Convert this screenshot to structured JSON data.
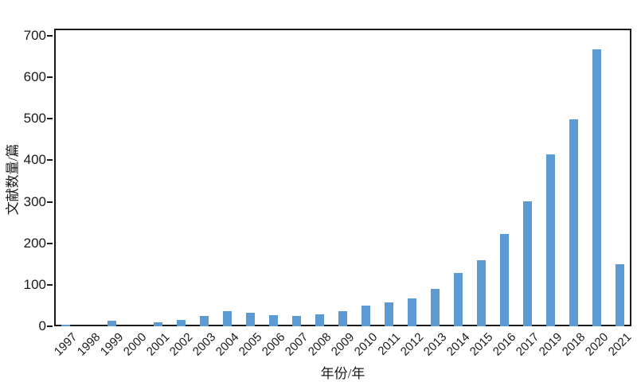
{
  "figure": {
    "background": "#ffffff"
  },
  "chart_data": {
    "type": "bar",
    "title": "",
    "xlabel": "年份/年",
    "ylabel": "文献数量/篇",
    "categories": [
      "1997",
      "1998",
      "1999",
      "2000",
      "2001",
      "2002",
      "2003",
      "2004",
      "2005",
      "2006",
      "2007",
      "2008",
      "2009",
      "2010",
      "2011",
      "2012",
      "2013",
      "2014",
      "2015",
      "2016",
      "2017",
      "2019",
      "2018",
      "2020",
      "2021"
    ],
    "values": [
      4,
      0,
      13,
      0,
      10,
      16,
      24,
      36,
      33,
      27,
      25,
      29,
      36,
      50,
      57,
      67,
      91,
      128,
      160,
      222,
      301,
      414,
      499,
      667,
      150
    ],
    "yticks": [
      0,
      100,
      200,
      300,
      400,
      500,
      600,
      700
    ],
    "ylim": [
      0,
      717
    ],
    "xtick_rotation": 45,
    "grid": false,
    "legend": null,
    "bar_color": "#5b9ad2",
    "axis_color": "#1a1a1a",
    "text_color": "#1a1a1a"
  }
}
